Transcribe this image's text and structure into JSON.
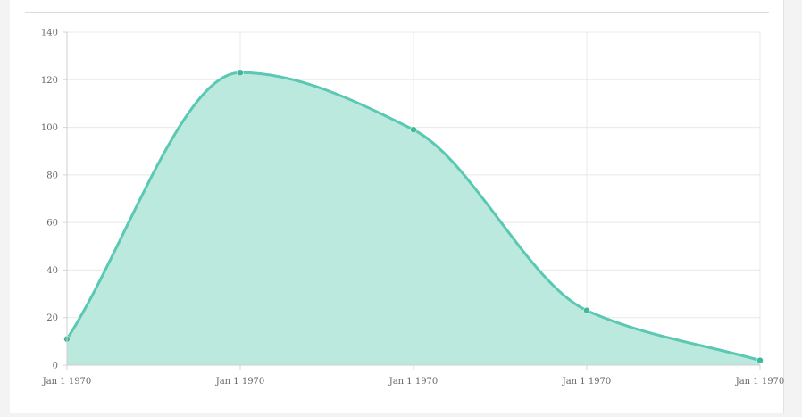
{
  "chart_data": {
    "type": "area",
    "x": [
      "Jan 1 1970",
      "Jan 1 1970",
      "Jan 1 1970",
      "Jan 1 1970",
      "Jan 1 1970"
    ],
    "series": [
      {
        "values": [
          11,
          123,
          99,
          23,
          2
        ]
      }
    ],
    "yticks": [
      0,
      20,
      40,
      60,
      80,
      100,
      120,
      140
    ],
    "ylim": [
      0,
      140
    ],
    "grid": true,
    "line_color": "#5ac8b2",
    "fill_color": "#bbe9de",
    "point_color": "#3fb89c"
  }
}
